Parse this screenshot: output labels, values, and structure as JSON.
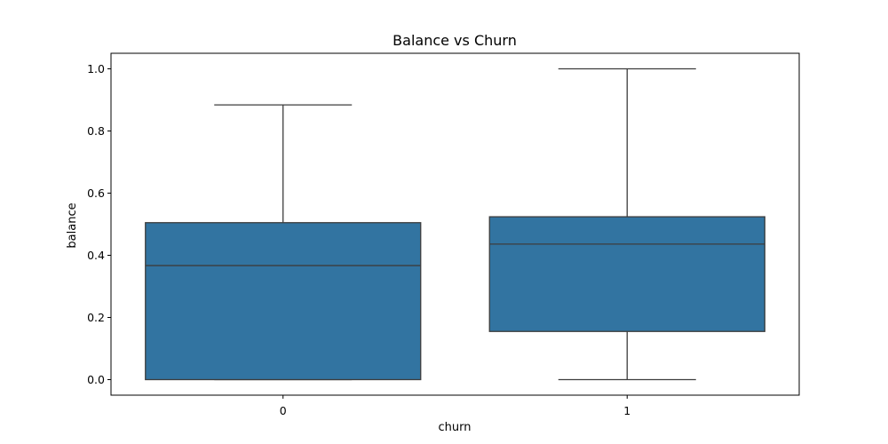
{
  "chart_data": {
    "type": "box",
    "title": "Balance vs Churn",
    "xlabel": "churn",
    "ylabel": "balance",
    "categories": [
      "0",
      "1"
    ],
    "ylim": [
      -0.05,
      1.05
    ],
    "yticks": [
      0.0,
      0.2,
      0.4,
      0.6,
      0.8,
      1.0
    ],
    "ytick_labels": [
      "0.0",
      "0.2",
      "0.4",
      "0.6",
      "0.8",
      "1.0"
    ],
    "grid": false,
    "color": "#3274a1",
    "edge_color": "#3d3d3d",
    "boxes": [
      {
        "category": "0",
        "whisker_low": 0.0,
        "q1": 0.0,
        "median": 0.367,
        "q3": 0.505,
        "whisker_high": 0.884
      },
      {
        "category": "1",
        "whisker_low": 0.0,
        "q1": 0.155,
        "median": 0.436,
        "q3": 0.524,
        "whisker_high": 1.0
      }
    ]
  }
}
